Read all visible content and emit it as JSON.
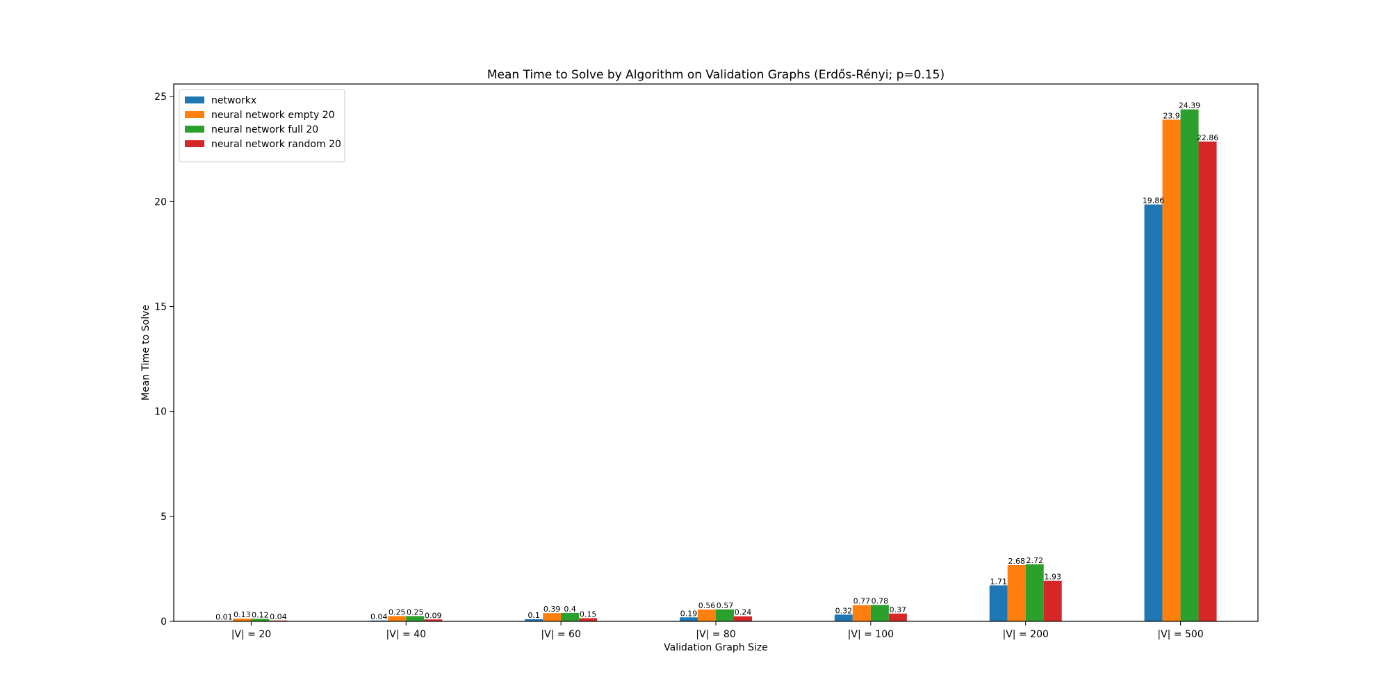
{
  "chart_data": {
    "type": "bar",
    "title": "Mean Time to Solve by Algorithm on Validation Graphs (Erdős-Rényi; p=0.15)",
    "xlabel": "Validation Graph Size",
    "ylabel": "Mean Time to Solve",
    "categories": [
      "|V| = 20",
      "|V| = 40",
      "|V| = 60",
      "|V| = 80",
      "|V| = 100",
      "|V| = 200",
      "|V| = 500"
    ],
    "series": [
      {
        "name": "networkx",
        "color": "#1f77b4",
        "values": [
          0.01,
          0.04,
          0.1,
          0.19,
          0.32,
          1.71,
          19.86
        ]
      },
      {
        "name": "neural network empty 20",
        "color": "#ff7f0e",
        "values": [
          0.13,
          0.25,
          0.39,
          0.56,
          0.77,
          2.68,
          23.9
        ]
      },
      {
        "name": "neural network full 20",
        "color": "#2ca02c",
        "values": [
          0.12,
          0.25,
          0.4,
          0.57,
          0.78,
          2.72,
          24.39
        ]
      },
      {
        "name": "neural network random 20",
        "color": "#d62728",
        "values": [
          0.04,
          0.09,
          0.15,
          0.24,
          0.37,
          1.93,
          22.86
        ]
      }
    ],
    "ylim": [
      0,
      25.6
    ],
    "yticks": [
      0,
      5,
      10,
      15,
      20,
      25
    ],
    "grid": false,
    "legend_position": "top-left"
  }
}
